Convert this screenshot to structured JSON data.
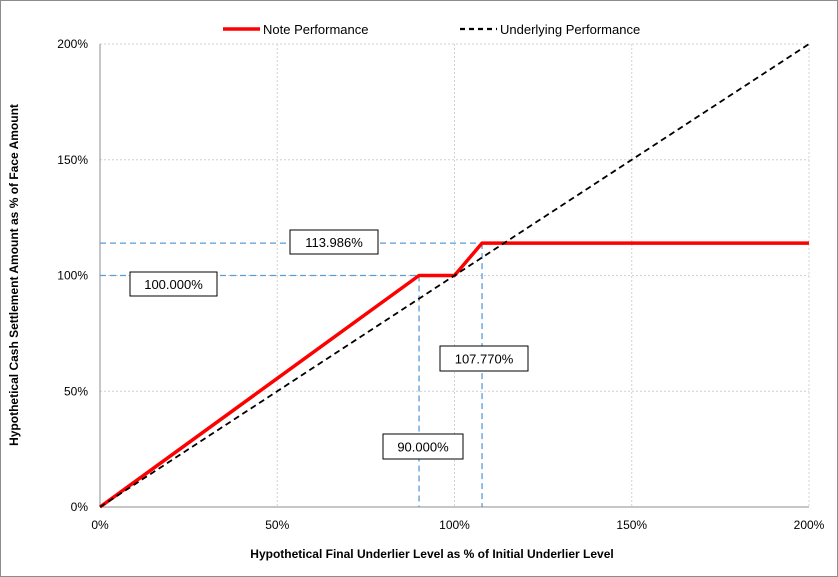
{
  "chart_data": {
    "type": "line",
    "title": "",
    "xlabel": "Hypothetical Final Underlier Level as % of Initial Underlier Level",
    "ylabel": "Hypothetical Cash Settlement Amount as % of Face Amount",
    "xlim": [
      0,
      200
    ],
    "ylim": [
      0,
      200
    ],
    "x_ticks": [
      0,
      50,
      100,
      150,
      200
    ],
    "y_ticks": [
      0,
      50,
      100,
      150,
      200
    ],
    "x_tick_labels": [
      "0%",
      "50%",
      "100%",
      "150%",
      "200%"
    ],
    "y_tick_labels": [
      "0%",
      "50%",
      "100%",
      "150%",
      "200%"
    ],
    "grid": true,
    "legend_position": "top-center",
    "series": [
      {
        "name": "Note Performance",
        "color": "#ff0000",
        "style": "solid",
        "x": [
          0,
          90,
          100,
          107.77,
          200
        ],
        "y": [
          0,
          100,
          100,
          113.986,
          113.986
        ]
      },
      {
        "name": "Underlying Performance",
        "color": "#000000",
        "style": "dashed",
        "x": [
          0,
          200
        ],
        "y": [
          0,
          200
        ]
      }
    ],
    "reference_lines": {
      "color": "#5b9bd5",
      "horizontal": [
        {
          "y": 113.986,
          "x_end": 107.77
        },
        {
          "y": 100,
          "x_end": 90
        }
      ],
      "vertical": [
        {
          "x": 90,
          "y_end": 100
        },
        {
          "x": 107.77,
          "y_end": 113.986
        }
      ]
    },
    "annotations": [
      {
        "text": "113.986%"
      },
      {
        "text": "100.000%"
      },
      {
        "text": "107.770%"
      },
      {
        "text": "90.000%"
      }
    ]
  }
}
